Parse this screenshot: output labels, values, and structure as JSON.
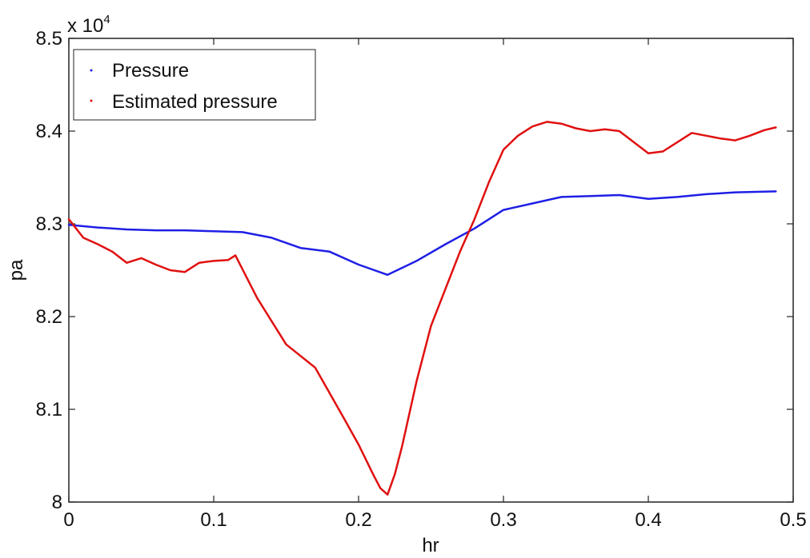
{
  "chart_data": {
    "type": "line",
    "xlabel": "hr",
    "ylabel": "pa",
    "xlim": [
      0,
      0.5
    ],
    "ylim": [
      80000,
      85000
    ],
    "y_exponent_label": {
      "base": "x 10",
      "power": "4"
    },
    "x_ticks": [
      0,
      0.1,
      0.2,
      0.3,
      0.4,
      0.5
    ],
    "x_tick_labels": [
      "0",
      "0.1",
      "0.2",
      "0.3",
      "0.4",
      "0.5"
    ],
    "y_ticks": [
      80000,
      81000,
      82000,
      83000,
      84000,
      85000
    ],
    "y_tick_labels": [
      "8",
      "8.1",
      "8.2",
      "8.3",
      "8.4",
      "8.5"
    ],
    "grid": false,
    "legend_position": "top-left",
    "series": [
      {
        "name": "Pressure",
        "color": "#1f1fe6",
        "x": [
          0,
          0.02,
          0.04,
          0.06,
          0.08,
          0.1,
          0.12,
          0.14,
          0.16,
          0.18,
          0.2,
          0.22,
          0.24,
          0.26,
          0.28,
          0.3,
          0.32,
          0.34,
          0.36,
          0.38,
          0.4,
          0.42,
          0.44,
          0.46,
          0.488
        ],
        "y": [
          82990,
          82960,
          82940,
          82930,
          82930,
          82920,
          82910,
          82850,
          82740,
          82700,
          82560,
          82450,
          82600,
          82780,
          82950,
          83150,
          83220,
          83290,
          83300,
          83310,
          83270,
          83290,
          83320,
          83340,
          83350
        ]
      },
      {
        "name": "Estimated pressure",
        "color": "#e01010",
        "x": [
          0,
          0.01,
          0.02,
          0.03,
          0.04,
          0.05,
          0.06,
          0.07,
          0.08,
          0.09,
          0.1,
          0.11,
          0.115,
          0.13,
          0.15,
          0.17,
          0.19,
          0.2,
          0.21,
          0.215,
          0.22,
          0.225,
          0.23,
          0.24,
          0.25,
          0.26,
          0.27,
          0.28,
          0.29,
          0.3,
          0.31,
          0.32,
          0.33,
          0.34,
          0.35,
          0.36,
          0.37,
          0.38,
          0.39,
          0.4,
          0.41,
          0.42,
          0.43,
          0.44,
          0.45,
          0.46,
          0.47,
          0.48,
          0.488
        ],
        "y": [
          83050,
          82850,
          82780,
          82700,
          82580,
          82630,
          82560,
          82500,
          82480,
          82580,
          82600,
          82610,
          82660,
          82200,
          81700,
          81450,
          80900,
          80620,
          80300,
          80150,
          80080,
          80300,
          80600,
          81300,
          81900,
          82300,
          82700,
          83050,
          83450,
          83800,
          83950,
          84050,
          84100,
          84080,
          84030,
          84000,
          84020,
          84000,
          83880,
          83760,
          83780,
          83880,
          83980,
          83950,
          83920,
          83900,
          83950,
          84010,
          84040
        ]
      }
    ]
  }
}
